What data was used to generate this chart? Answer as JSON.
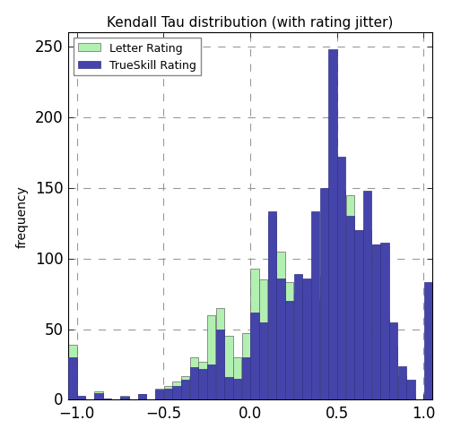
{
  "title": "Kendall Tau distribution (with rating jitter)",
  "ylabel": "frequency",
  "xlabel": "",
  "xlim": [
    -1.05,
    1.05
  ],
  "ylim": [
    0,
    260
  ],
  "yticks": [
    0,
    50,
    100,
    150,
    200,
    250
  ],
  "xticks": [
    -1.0,
    -0.5,
    0.0,
    0.5,
    1.0
  ],
  "bin_centers": [
    -1.025,
    -0.975,
    -0.925,
    -0.875,
    -0.825,
    -0.775,
    -0.725,
    -0.675,
    -0.625,
    -0.575,
    -0.525,
    -0.475,
    -0.425,
    -0.375,
    -0.325,
    -0.275,
    -0.225,
    -0.175,
    -0.125,
    -0.075,
    -0.025,
    0.025,
    0.075,
    0.125,
    0.175,
    0.225,
    0.275,
    0.325,
    0.375,
    0.425,
    0.475,
    0.525,
    0.575,
    0.625,
    0.675,
    0.725,
    0.775,
    0.825,
    0.875,
    0.925,
    0.975,
    1.025
  ],
  "bin_width": 0.05,
  "letter_freq": [
    39,
    2,
    0,
    6,
    0,
    0,
    3,
    0,
    4,
    0,
    8,
    10,
    13,
    17,
    30,
    27,
    60,
    65,
    45,
    30,
    47,
    93,
    85,
    130,
    105,
    83,
    75,
    72,
    71,
    88,
    150,
    148,
    145,
    120,
    120,
    110,
    57,
    38,
    17,
    3,
    0,
    0
  ],
  "trueskill_freq": [
    30,
    3,
    0,
    5,
    1,
    0,
    2,
    0,
    4,
    0,
    7,
    8,
    10,
    14,
    23,
    22,
    25,
    50,
    16,
    15,
    30,
    62,
    55,
    133,
    86,
    70,
    89,
    86,
    133,
    150,
    248,
    172,
    130,
    120,
    148,
    110,
    111,
    55,
    24,
    14,
    0,
    83
  ],
  "letter_color": "#b2f0b2",
  "letter_edge_color": "#666666",
  "trueskill_color": "#4444aa",
  "trueskill_edge_color": "#333388",
  "legend_labels": [
    "Letter Rating",
    "TrueSkill Rating"
  ],
  "grid_color": "#999999",
  "grid_style": "--",
  "background_color": "#ffffff",
  "spine_color": "#000000"
}
